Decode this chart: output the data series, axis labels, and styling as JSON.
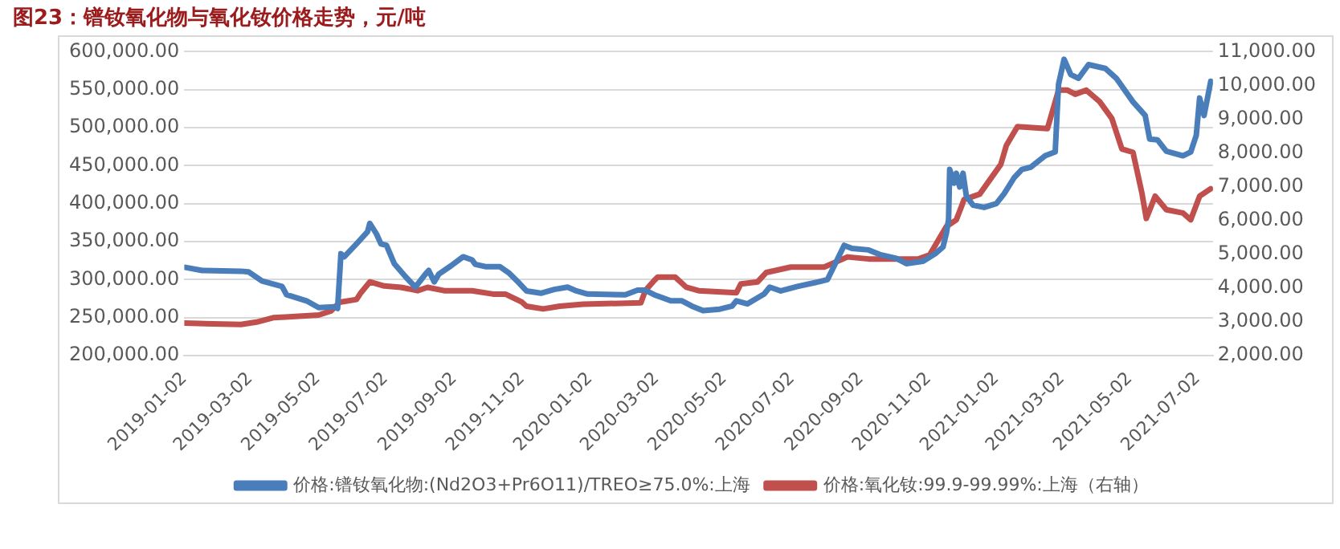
{
  "chart_data": {
    "type": "line",
    "title": "图23：镨钕氧化物与氧化钕价格走势，元/吨",
    "xlim": [
      "2019-01-02",
      "2021-07-16"
    ],
    "xticks": [
      "2019-01-02",
      "2019-03-02",
      "2019-05-02",
      "2019-07-02",
      "2019-09-02",
      "2019-11-02",
      "2020-01-02",
      "2020-03-02",
      "2020-05-02",
      "2020-07-02",
      "2020-09-02",
      "2020-11-02",
      "2021-01-02",
      "2021-03-02",
      "2021-05-02",
      "2021-07-02"
    ],
    "ylim": [
      200000,
      600000
    ],
    "yticks": [
      {
        "value": 200000,
        "label": "200,000.00"
      },
      {
        "value": 250000,
        "label": "250,000.00"
      },
      {
        "value": 300000,
        "label": "300,000.00"
      },
      {
        "value": 350000,
        "label": "350,000.00"
      },
      {
        "value": 400000,
        "label": "400,000.00"
      },
      {
        "value": 450000,
        "label": "450,000.00"
      },
      {
        "value": 500000,
        "label": "500,000.00"
      },
      {
        "value": 550000,
        "label": "550,000.00"
      },
      {
        "value": 600000,
        "label": "600,000.00"
      }
    ],
    "y2lim": [
      2000,
      11000
    ],
    "y2ticks": [
      {
        "value": 2000,
        "label": "2,000.00"
      },
      {
        "value": 3000,
        "label": "3,000.00"
      },
      {
        "value": 4000,
        "label": "4,000.00"
      },
      {
        "value": 5000,
        "label": "5,000.00"
      },
      {
        "value": 6000,
        "label": "6,000.00"
      },
      {
        "value": 7000,
        "label": "7,000.00"
      },
      {
        "value": 8000,
        "label": "8,000.00"
      },
      {
        "value": 9000,
        "label": "9,000.00"
      },
      {
        "value": 10000,
        "label": "10,000.00"
      },
      {
        "value": 11000,
        "label": "11,000.00"
      }
    ],
    "grid": "y",
    "legend": "bottom",
    "marker": "none",
    "line_style": "solid",
    "series": [
      {
        "name": "价格:镨钕氧化物:(Nd2O3+Pr6O11)/TREO≥75.0%:上海",
        "color": "#4a7ebb",
        "x": [
          "2019-01-03",
          "2019-01-18",
          "2019-02-22",
          "2019-03-01",
          "2019-03-13",
          "2019-03-23",
          "2019-03-31",
          "2019-04-04",
          "2019-04-22",
          "2019-05-03",
          "2019-05-17",
          "2019-05-20",
          "2019-05-23",
          "2019-05-26",
          "2019-06-06",
          "2019-06-16",
          "2019-06-18",
          "2019-06-24",
          "2019-06-28",
          "2019-07-03",
          "2019-07-10",
          "2019-07-20",
          "2019-07-29",
          "2019-08-07",
          "2019-08-10",
          "2019-08-15",
          "2019-08-19",
          "2019-08-30",
          "2019-09-10",
          "2019-09-18",
          "2019-09-21",
          "2019-09-30",
          "2019-10-13",
          "2019-10-21",
          "2019-10-30",
          "2019-11-06",
          "2019-11-19",
          "2019-12-01",
          "2019-12-13",
          "2019-12-21",
          "2019-12-31",
          "2020-02-03",
          "2020-02-14",
          "2020-02-21",
          "2020-02-29",
          "2020-03-15",
          "2020-03-25",
          "2020-04-03",
          "2020-04-13",
          "2020-04-28",
          "2020-05-09",
          "2020-05-13",
          "2020-05-23",
          "2020-06-07",
          "2020-06-12",
          "2020-06-22",
          "2020-07-07",
          "2020-07-26",
          "2020-08-03",
          "2020-08-10",
          "2020-08-18",
          "2020-08-25",
          "2020-09-09",
          "2020-09-19",
          "2020-10-04",
          "2020-10-13",
          "2020-10-28",
          "2020-11-08",
          "2020-11-15",
          "2020-11-18",
          "2020-11-20",
          "2020-11-21",
          "2020-11-25",
          "2020-11-27",
          "2020-11-30",
          "2020-12-03",
          "2020-12-06",
          "2020-12-12",
          "2020-12-22",
          "2021-01-02",
          "2021-01-09",
          "2021-01-18",
          "2021-01-25",
          "2021-02-02",
          "2021-02-15",
          "2021-02-24",
          "2021-02-27",
          "2021-03-04",
          "2021-03-10",
          "2021-03-17",
          "2021-03-26",
          "2021-04-10",
          "2021-04-20",
          "2021-05-05",
          "2021-05-16",
          "2021-05-20",
          "2021-05-27",
          "2021-06-04",
          "2021-06-19",
          "2021-06-26",
          "2021-07-01",
          "2021-07-04",
          "2021-07-08",
          "2021-07-14"
        ],
        "values": [
          316000,
          312000,
          311000,
          310000,
          298000,
          294000,
          291000,
          280000,
          272000,
          263000,
          264000,
          262000,
          334000,
          330000,
          347000,
          363000,
          374000,
          360000,
          347000,
          345000,
          321000,
          304000,
          290000,
          307000,
          312000,
          297000,
          307000,
          318000,
          330000,
          326000,
          320000,
          317000,
          317000,
          309000,
          296000,
          285000,
          282000,
          287000,
          290000,
          285000,
          281000,
          280000,
          286000,
          286000,
          280000,
          272000,
          272000,
          265000,
          259000,
          261000,
          265000,
          272000,
          268000,
          281000,
          290000,
          285000,
          291000,
          297000,
          300000,
          321000,
          345000,
          341000,
          339000,
          333000,
          328000,
          321000,
          324000,
          334000,
          343000,
          361000,
          379000,
          445000,
          427000,
          440000,
          422000,
          440000,
          410000,
          398000,
          395000,
          400000,
          413000,
          434000,
          445000,
          448000,
          463000,
          468000,
          557000,
          590000,
          570000,
          565000,
          583000,
          578000,
          565000,
          534000,
          516000,
          485000,
          484000,
          469000,
          463000,
          468000,
          490000,
          539000,
          516000,
          561000
        ]
      },
      {
        "name": "价格:氧化钕:99.9-99.99%:上海（右轴）",
        "color": "#c0504d",
        "axis": "y2",
        "x": [
          "2019-01-02",
          "2019-02-22",
          "2019-03-08",
          "2019-03-23",
          "2019-04-03",
          "2019-05-03",
          "2019-05-14",
          "2019-05-22",
          "2019-06-06",
          "2019-06-10",
          "2019-06-18",
          "2019-07-01",
          "2019-07-16",
          "2019-07-31",
          "2019-08-09",
          "2019-08-24",
          "2019-09-18",
          "2019-10-07",
          "2019-10-18",
          "2019-11-02",
          "2019-11-06",
          "2019-11-21",
          "2019-12-06",
          "2019-12-27",
          "2020-02-17",
          "2020-02-21",
          "2020-02-29",
          "2020-03-03",
          "2020-03-19",
          "2020-03-29",
          "2020-04-09",
          "2020-05-13",
          "2020-05-17",
          "2020-06-01",
          "2020-06-09",
          "2020-07-01",
          "2020-07-31",
          "2020-08-21",
          "2020-09-09",
          "2020-10-24",
          "2020-11-03",
          "2020-11-18",
          "2020-11-27",
          "2020-12-04",
          "2020-12-18",
          "2021-01-06",
          "2021-01-11",
          "2021-01-21",
          "2021-02-17",
          "2021-02-27",
          "2021-03-07",
          "2021-03-14",
          "2021-03-24",
          "2021-04-05",
          "2021-04-16",
          "2021-04-25",
          "2021-05-05",
          "2021-05-13",
          "2021-05-17",
          "2021-05-25",
          "2021-06-04",
          "2021-06-19",
          "2021-06-26",
          "2021-07-04",
          "2021-07-14"
        ],
        "values": [
          2960,
          2920,
          2990,
          3120,
          3140,
          3200,
          3320,
          3580,
          3660,
          3860,
          4180,
          4060,
          4020,
          3920,
          4020,
          3920,
          3920,
          3820,
          3820,
          3580,
          3460,
          3380,
          3460,
          3520,
          3560,
          3920,
          4220,
          4320,
          4320,
          4020,
          3920,
          3860,
          4120,
          4180,
          4460,
          4620,
          4620,
          4920,
          4860,
          4860,
          4980,
          5820,
          6020,
          6620,
          6780,
          7660,
          8220,
          8780,
          8720,
          9860,
          9860,
          9740,
          9860,
          9520,
          9020,
          8120,
          8020,
          6820,
          6060,
          6720,
          6320,
          6220,
          6020,
          6720,
          6940
        ]
      }
    ]
  }
}
